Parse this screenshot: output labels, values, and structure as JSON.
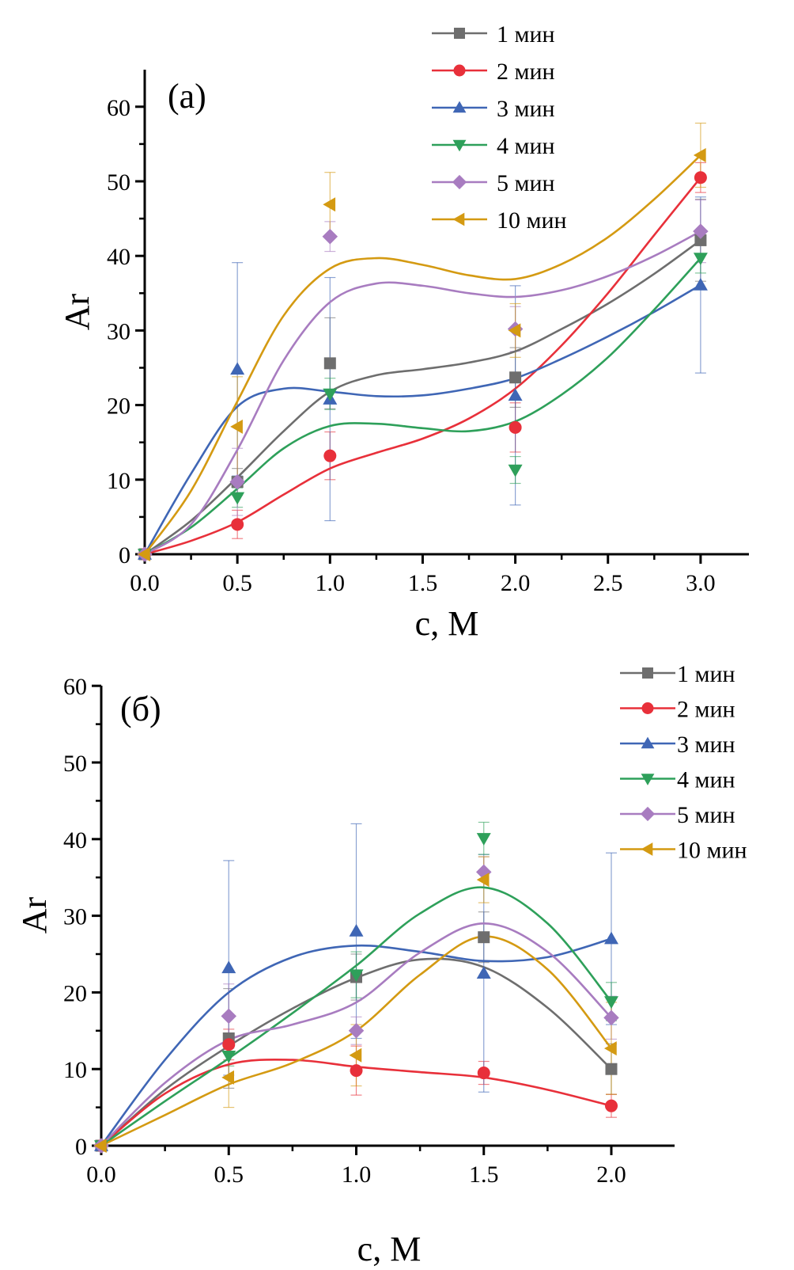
{
  "chart_data": [
    {
      "type": "line",
      "panel_label": "(a)",
      "xlabel": "c, M",
      "ylabel": "Ar",
      "xlim": [
        0,
        3.25
      ],
      "ylim": [
        0,
        65
      ],
      "x_ticks": [
        "0.0",
        "0.5",
        "1.0",
        "1.5",
        "2.0",
        "2.5",
        "3.0"
      ],
      "x_tick_values": [
        0,
        0.5,
        1.0,
        1.5,
        2.0,
        2.5,
        3.0
      ],
      "x_minor_ticks": [
        0.25,
        0.75,
        1.25,
        1.75,
        2.25,
        2.75
      ],
      "y_ticks": [
        "0",
        "10",
        "20",
        "30",
        "40",
        "50",
        "60"
      ],
      "y_tick_values": [
        0,
        10,
        20,
        30,
        40,
        50,
        60
      ],
      "y_minor_ticks": [
        5,
        15,
        25,
        35,
        45,
        55
      ],
      "grid": false,
      "legend_position": "top-right",
      "x": [
        0,
        0.5,
        1.0,
        2.0,
        3.0
      ],
      "series": [
        {
          "name": "1 мин",
          "color": "#6e6e6e",
          "marker": "square",
          "values": [
            0,
            9.7,
            25.6,
            23.7,
            42.1
          ],
          "errors": [
            0,
            1.8,
            6.1,
            4.0,
            5.5
          ],
          "fit": [
            [
              0,
              0
            ],
            [
              0.25,
              4.5
            ],
            [
              0.5,
              10.3
            ],
            [
              0.75,
              16.5
            ],
            [
              1.0,
              21.8
            ],
            [
              1.25,
              24.0
            ],
            [
              1.5,
              24.8
            ],
            [
              1.75,
              25.7
            ],
            [
              2.0,
              27.2
            ],
            [
              2.25,
              30.2
            ],
            [
              2.5,
              33.6
            ],
            [
              2.75,
              37.6
            ],
            [
              3.0,
              42.1
            ]
          ]
        },
        {
          "name": "2 мин",
          "color": "#e8303a",
          "marker": "circle",
          "values": [
            0,
            4.0,
            13.2,
            17.0,
            50.5
          ],
          "errors": [
            0,
            1.9,
            3.2,
            3.3,
            2.0
          ],
          "fit": [
            [
              0,
              0
            ],
            [
              0.25,
              1.8
            ],
            [
              0.5,
              4.3
            ],
            [
              0.75,
              8.0
            ],
            [
              1.0,
              11.5
            ],
            [
              1.25,
              13.6
            ],
            [
              1.5,
              15.5
            ],
            [
              1.75,
              18.2
            ],
            [
              2.0,
              22.2
            ],
            [
              2.25,
              28.0
            ],
            [
              2.5,
              35.0
            ],
            [
              2.75,
              42.8
            ],
            [
              3.0,
              50.5
            ]
          ]
        },
        {
          "name": "3 мин",
          "color": "#3f66b5",
          "marker": "triangle-up",
          "values": [
            0,
            24.8,
            20.8,
            21.3,
            36.1
          ],
          "errors": [
            0,
            14.3,
            16.3,
            14.7,
            11.8
          ],
          "fit": [
            [
              0,
              0
            ],
            [
              0.25,
              10.8
            ],
            [
              0.5,
              19.8
            ],
            [
              0.75,
              22.2
            ],
            [
              1.0,
              21.8
            ],
            [
              1.25,
              21.2
            ],
            [
              1.5,
              21.3
            ],
            [
              1.75,
              22.2
            ],
            [
              2.0,
              23.6
            ],
            [
              2.25,
              26.2
            ],
            [
              2.5,
              29.2
            ],
            [
              2.75,
              32.5
            ],
            [
              3.0,
              36.1
            ]
          ]
        },
        {
          "name": "4 мин",
          "color": "#2ea05a",
          "marker": "triangle-down",
          "values": [
            0,
            7.6,
            21.5,
            11.3,
            39.7
          ],
          "errors": [
            0,
            1.3,
            2.1,
            1.8,
            2.0
          ],
          "fit": [
            [
              0,
              0
            ],
            [
              0.25,
              3.6
            ],
            [
              0.5,
              8.8
            ],
            [
              0.75,
              14.2
            ],
            [
              1.0,
              17.2
            ],
            [
              1.25,
              17.5
            ],
            [
              1.5,
              16.9
            ],
            [
              1.75,
              16.5
            ],
            [
              2.0,
              17.8
            ],
            [
              2.25,
              21.4
            ],
            [
              2.5,
              26.4
            ],
            [
              2.75,
              32.8
            ],
            [
              3.0,
              39.7
            ]
          ]
        },
        {
          "name": "5 мин",
          "color": "#a87cc0",
          "marker": "diamond",
          "values": [
            0,
            9.7,
            42.6,
            30.2,
            43.3
          ],
          "errors": [
            0,
            4.5,
            2.0,
            3.0,
            4.2
          ],
          "fit": [
            [
              0,
              0
            ],
            [
              0.25,
              4.0
            ],
            [
              0.5,
              14.0
            ],
            [
              0.75,
              26.0
            ],
            [
              1.0,
              33.8
            ],
            [
              1.25,
              36.3
            ],
            [
              1.5,
              36.0
            ],
            [
              1.75,
              35.0
            ],
            [
              2.0,
              34.5
            ],
            [
              2.25,
              35.4
            ],
            [
              2.5,
              37.3
            ],
            [
              2.75,
              40.0
            ],
            [
              3.0,
              43.3
            ]
          ]
        },
        {
          "name": "10 мин",
          "color": "#d49a12",
          "marker": "triangle-left",
          "values": [
            0,
            17.1,
            46.9,
            30.0,
            53.5
          ],
          "errors": [
            0,
            6.7,
            4.3,
            3.6,
            4.3
          ],
          "fit": [
            [
              0,
              0
            ],
            [
              0.25,
              8.5
            ],
            [
              0.5,
              20.5
            ],
            [
              0.75,
              32.0
            ],
            [
              1.0,
              38.3
            ],
            [
              1.25,
              39.7
            ],
            [
              1.5,
              38.8
            ],
            [
              1.75,
              37.4
            ],
            [
              2.0,
              36.9
            ],
            [
              2.25,
              38.9
            ],
            [
              2.5,
              42.5
            ],
            [
              2.75,
              47.6
            ],
            [
              3.0,
              53.5
            ]
          ]
        }
      ]
    },
    {
      "type": "line",
      "panel_label": "(б)",
      "xlabel": "c, M",
      "ylabel": "Ar",
      "xlim": [
        0,
        2.25
      ],
      "ylim": [
        0,
        60
      ],
      "x_ticks": [
        "0.0",
        "0.5",
        "1.0",
        "1.5",
        "2.0"
      ],
      "x_tick_values": [
        0,
        0.5,
        1.0,
        1.5,
        2.0
      ],
      "x_minor_ticks": [
        0.25,
        0.75,
        1.25,
        1.75
      ],
      "y_ticks": [
        "0",
        "10",
        "20",
        "30",
        "40",
        "50",
        "60"
      ],
      "y_tick_values": [
        0,
        10,
        20,
        30,
        40,
        50,
        60
      ],
      "y_minor_ticks": [
        5,
        15,
        25,
        35,
        45,
        55
      ],
      "grid": false,
      "legend_position": "top-right",
      "x": [
        0,
        0.5,
        1.0,
        1.5,
        2.0
      ],
      "series": [
        {
          "name": "1 мин",
          "color": "#6e6e6e",
          "marker": "square",
          "values": [
            0,
            14.0,
            22.0,
            27.2,
            10.0
          ],
          "errors": [
            0,
            6.5,
            3.0,
            3.3,
            3.3
          ],
          "fit": [
            [
              0,
              0
            ],
            [
              0.25,
              7.3
            ],
            [
              0.5,
              13.0
            ],
            [
              0.75,
              17.9
            ],
            [
              1.0,
              21.9
            ],
            [
              1.25,
              24.3
            ],
            [
              1.5,
              23.3
            ],
            [
              1.75,
              18.0
            ],
            [
              2.0,
              10.0
            ]
          ]
        },
        {
          "name": "2 мин",
          "color": "#e8303a",
          "marker": "circle",
          "values": [
            0,
            13.2,
            9.8,
            9.5,
            5.2
          ],
          "errors": [
            0,
            2.0,
            3.2,
            1.5,
            1.5
          ],
          "fit": [
            [
              0,
              0
            ],
            [
              0.25,
              6.8
            ],
            [
              0.5,
              10.6
            ],
            [
              0.75,
              11.2
            ],
            [
              1.0,
              10.3
            ],
            [
              1.25,
              9.6
            ],
            [
              1.5,
              8.9
            ],
            [
              1.75,
              7.3
            ],
            [
              2.0,
              5.2
            ]
          ]
        },
        {
          "name": "3 мин",
          "color": "#3f66b5",
          "marker": "triangle-up",
          "values": [
            0,
            23.2,
            28.0,
            22.5,
            27.0
          ],
          "errors": [
            0,
            14.0,
            14.0,
            15.5,
            11.2
          ],
          "fit": [
            [
              0,
              0
            ],
            [
              0.25,
              11.2
            ],
            [
              0.5,
              20.0
            ],
            [
              0.75,
              24.6
            ],
            [
              1.0,
              26.1
            ],
            [
              1.25,
              25.3
            ],
            [
              1.5,
              24.1
            ],
            [
              1.75,
              24.6
            ],
            [
              2.0,
              27.0
            ]
          ]
        },
        {
          "name": "4 мин",
          "color": "#2ea05a",
          "marker": "triangle-down",
          "values": [
            0,
            11.7,
            22.3,
            40.1,
            18.8
          ],
          "errors": [
            0,
            1.3,
            3.0,
            2.1,
            2.5
          ],
          "fit": [
            [
              0,
              0
            ],
            [
              0.25,
              5.8
            ],
            [
              0.5,
              11.4
            ],
            [
              0.75,
              17.3
            ],
            [
              1.0,
              23.5
            ],
            [
              1.25,
              30.3
            ],
            [
              1.5,
              33.7
            ],
            [
              1.75,
              29.0
            ],
            [
              2.0,
              18.8
            ]
          ]
        },
        {
          "name": "5 мин",
          "color": "#a87cc0",
          "marker": "diamond",
          "values": [
            0,
            16.9,
            15.0,
            35.7,
            16.7
          ],
          "errors": [
            0,
            4.2,
            1.8,
            2.0,
            2.8
          ],
          "fit": [
            [
              0,
              0
            ],
            [
              0.25,
              8.2
            ],
            [
              0.5,
              13.8
            ],
            [
              0.75,
              15.8
            ],
            [
              1.0,
              18.7
            ],
            [
              1.25,
              25.2
            ],
            [
              1.5,
              29.0
            ],
            [
              1.75,
              25.3
            ],
            [
              2.0,
              16.7
            ]
          ]
        },
        {
          "name": "10 мин",
          "color": "#d49a12",
          "marker": "triangle-left",
          "values": [
            0,
            8.9,
            11.8,
            34.7,
            12.7
          ],
          "errors": [
            0,
            3.9,
            4.0,
            3.0,
            6.0
          ],
          "fit": [
            [
              0,
              0
            ],
            [
              0.25,
              4.0
            ],
            [
              0.5,
              8.0
            ],
            [
              0.75,
              10.8
            ],
            [
              1.0,
              15.0
            ],
            [
              1.25,
              22.3
            ],
            [
              1.5,
              27.3
            ],
            [
              1.75,
              23.0
            ],
            [
              2.0,
              12.7
            ]
          ]
        }
      ]
    }
  ]
}
